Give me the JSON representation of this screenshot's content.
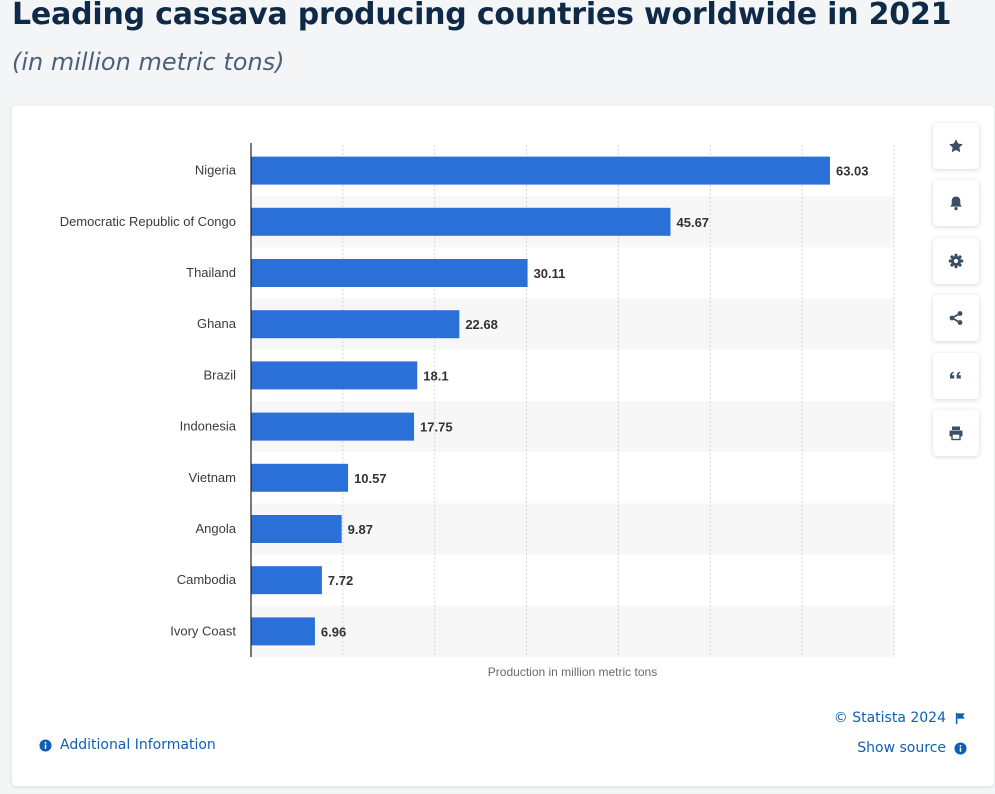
{
  "header": {
    "title": "Leading cassava producing countries worldwide in 2021",
    "subtitle": "(in million metric tons)"
  },
  "chart_data": {
    "type": "bar",
    "orientation": "horizontal",
    "categories": [
      "Nigeria",
      "Democratic Republic of Congo",
      "Thailand",
      "Ghana",
      "Brazil",
      "Indonesia",
      "Vietnam",
      "Angola",
      "Cambodia",
      "Ivory Coast"
    ],
    "values": [
      63.03,
      45.67,
      30.11,
      22.68,
      18.1,
      17.75,
      10.57,
      9.87,
      7.72,
      6.96
    ],
    "value_labels": [
      "63.03",
      "45.67",
      "30.11",
      "22.68",
      "18.1",
      "17.75",
      "10.57",
      "9.87",
      "7.72",
      "6.96"
    ],
    "xlabel": "Production in million metric tons",
    "ylabel": "",
    "xlim": [
      0,
      70
    ],
    "grid": true,
    "bar_color": "#2b6fd9"
  },
  "toolbar": {
    "items": [
      {
        "name": "star-icon",
        "label": "Favorite"
      },
      {
        "name": "bell-icon",
        "label": "Notifications"
      },
      {
        "name": "gear-icon",
        "label": "Settings"
      },
      {
        "name": "share-icon",
        "label": "Share"
      },
      {
        "name": "quote-icon",
        "label": "Cite"
      },
      {
        "name": "print-icon",
        "label": "Print"
      }
    ]
  },
  "footer": {
    "additional_info": "Additional Information",
    "copyright": "© Statista 2024",
    "show_source": "Show source"
  },
  "colors": {
    "link": "#0e5fb4",
    "icon": "#3b4e66",
    "title": "#0f2a47"
  }
}
